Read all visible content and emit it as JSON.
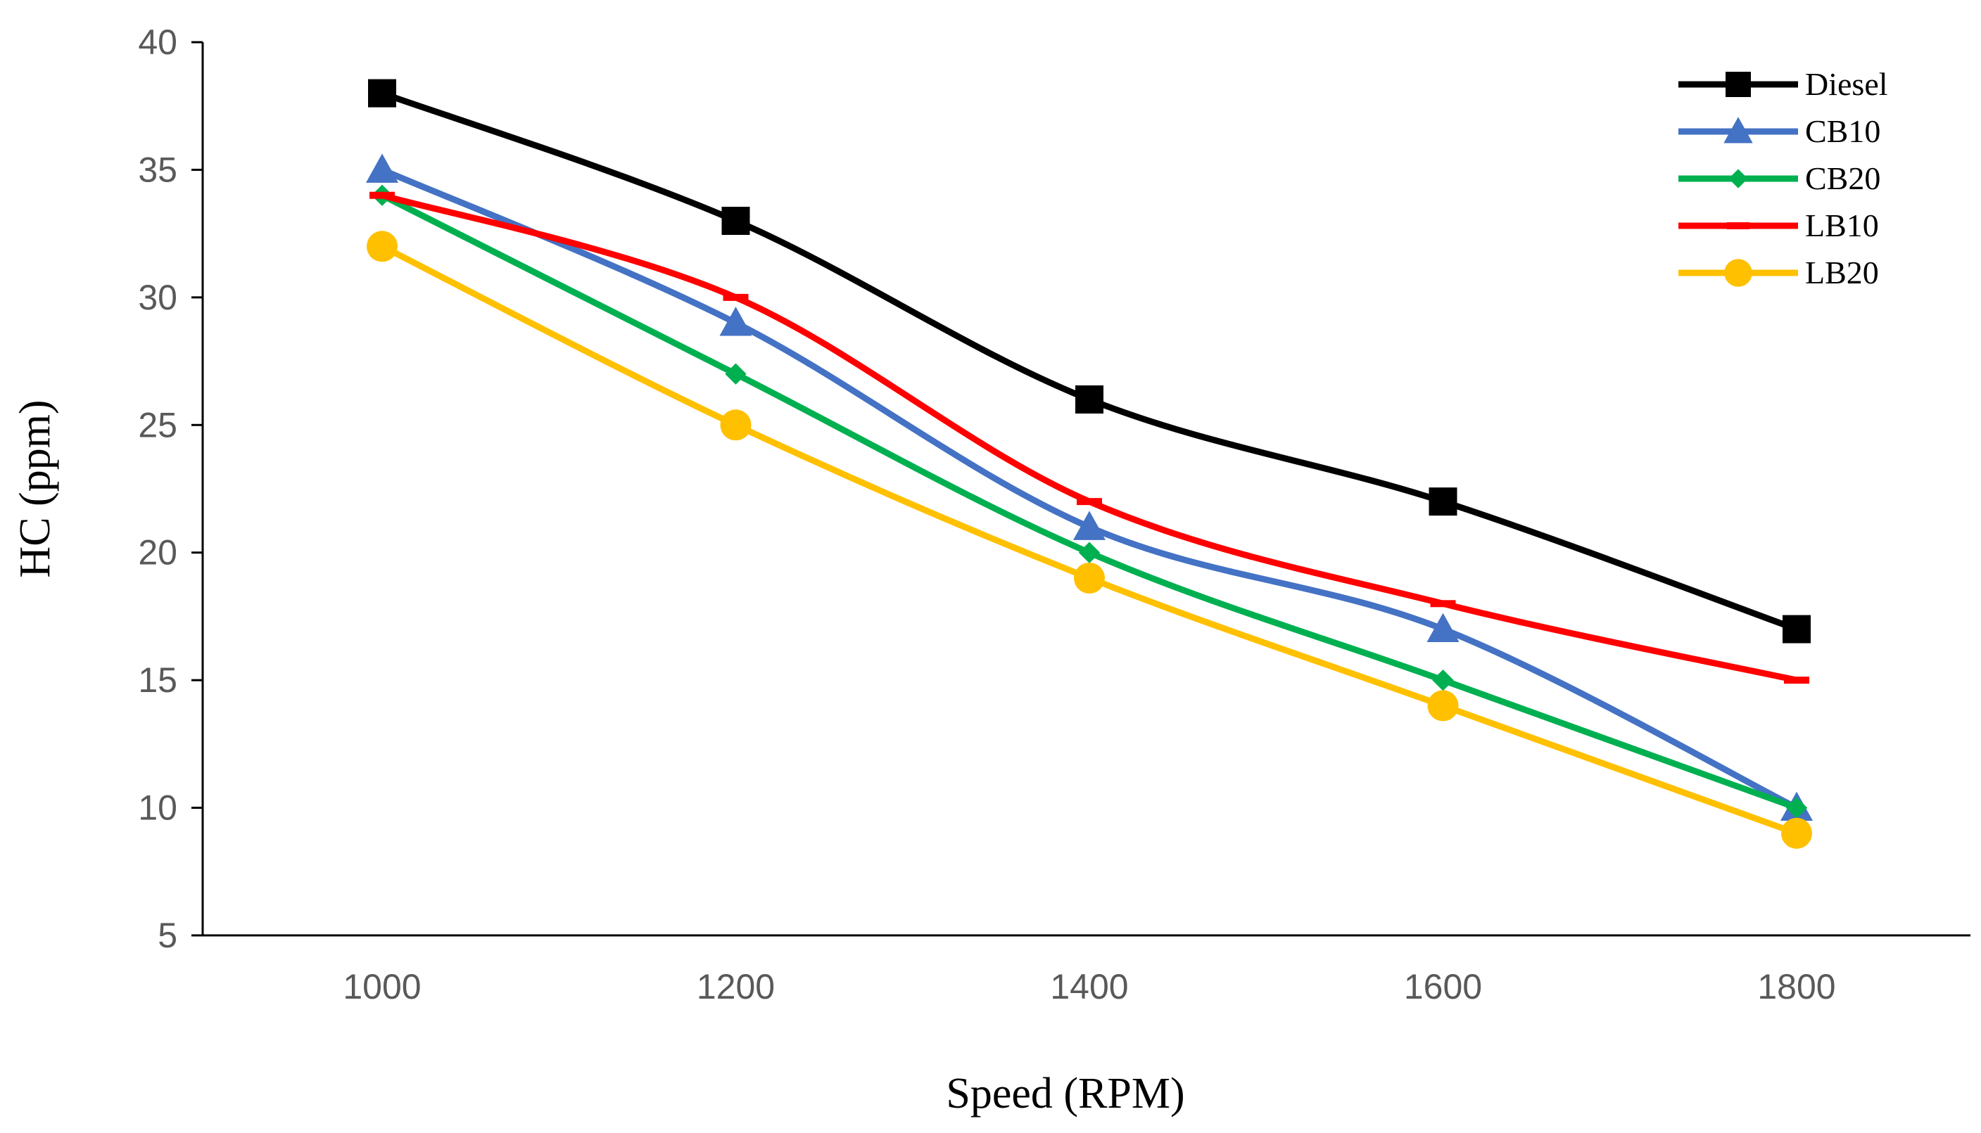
{
  "chart_data": {
    "type": "line",
    "title": "",
    "xlabel": "Speed (RPM)",
    "ylabel": "HC (ppm)",
    "x": [
      1000,
      1200,
      1400,
      1600,
      1800
    ],
    "x_tick_labels": [
      "1000",
      "1200",
      "1400",
      "1600",
      "1800"
    ],
    "ylim": [
      5,
      40
    ],
    "y_ticks": [
      5,
      10,
      15,
      20,
      25,
      30,
      35,
      40
    ],
    "grid": false,
    "legend_position": "top-right",
    "series": [
      {
        "name": "Diesel",
        "values": [
          38,
          33,
          26,
          22,
          17
        ],
        "color": "#000000",
        "marker": "square"
      },
      {
        "name": "CB10",
        "values": [
          35,
          29,
          21,
          17,
          10
        ],
        "color": "#4472C4",
        "marker": "triangle"
      },
      {
        "name": "CB20",
        "values": [
          34,
          27,
          20,
          15,
          10
        ],
        "color": "#00B050",
        "marker": "diamond"
      },
      {
        "name": "LB10",
        "values": [
          34,
          30,
          22,
          18,
          15
        ],
        "color": "#FF0000",
        "marker": "dash"
      },
      {
        "name": "LB20",
        "values": [
          32,
          25,
          19,
          14,
          9
        ],
        "color": "#FFC000",
        "marker": "circle"
      }
    ]
  }
}
